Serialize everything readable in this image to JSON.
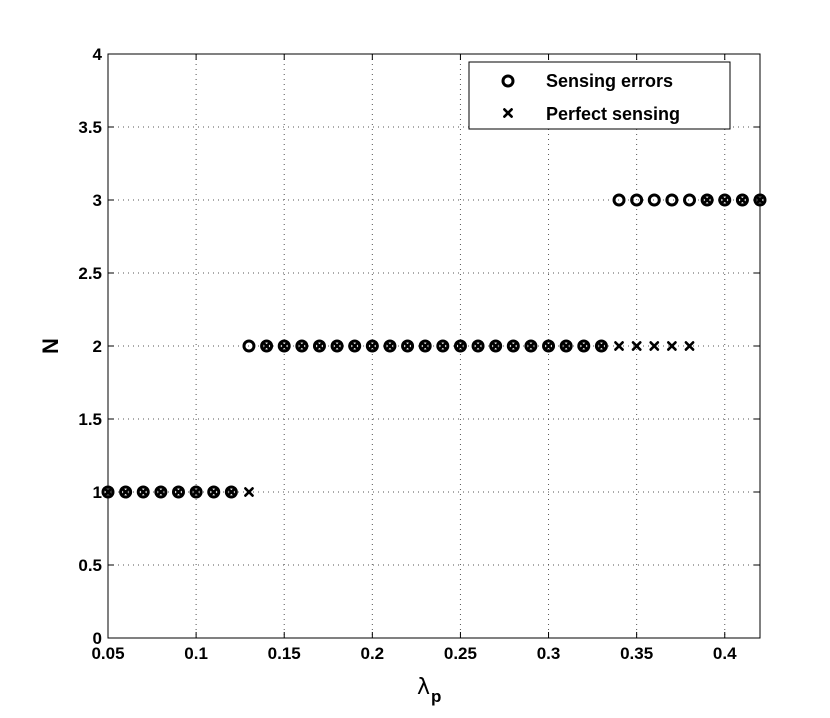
{
  "chart_data": {
    "type": "scatter",
    "title": "",
    "xlabel": "λ",
    "xlabel_sub": "p",
    "ylabel": "N",
    "xlim": [
      0.05,
      0.42
    ],
    "ylim": [
      0,
      4
    ],
    "grid": true,
    "legend_position": "top-right",
    "x_ticks": [
      "0.05",
      "0.1",
      "0.15",
      "0.2",
      "0.25",
      "0.3",
      "0.35",
      "0.4"
    ],
    "x_tick_values": [
      0.05,
      0.1,
      0.15,
      0.2,
      0.25,
      0.3,
      0.35,
      0.4
    ],
    "y_ticks": [
      "0",
      "0.5",
      "1",
      "1.5",
      "2",
      "2.5",
      "3",
      "3.5",
      "4"
    ],
    "y_tick_values": [
      0,
      0.5,
      1,
      1.5,
      2,
      2.5,
      3,
      3.5,
      4
    ],
    "series": [
      {
        "name": "Sensing errors",
        "marker": "circle",
        "x": [
          0.05,
          0.06,
          0.07,
          0.08,
          0.09,
          0.1,
          0.11,
          0.12,
          0.13,
          0.14,
          0.15,
          0.16,
          0.17,
          0.18,
          0.19,
          0.2,
          0.21,
          0.22,
          0.23,
          0.24,
          0.25,
          0.26,
          0.27,
          0.28,
          0.29,
          0.3,
          0.31,
          0.32,
          0.33,
          0.34,
          0.35,
          0.36,
          0.37,
          0.38,
          0.39,
          0.4,
          0.41,
          0.42
        ],
        "y": [
          1,
          1,
          1,
          1,
          1,
          1,
          1,
          1,
          2,
          2,
          2,
          2,
          2,
          2,
          2,
          2,
          2,
          2,
          2,
          2,
          2,
          2,
          2,
          2,
          2,
          2,
          2,
          2,
          2,
          3,
          3,
          3,
          3,
          3,
          3,
          3,
          3,
          3
        ]
      },
      {
        "name": "Perfect sensing",
        "marker": "x",
        "x": [
          0.05,
          0.06,
          0.07,
          0.08,
          0.09,
          0.1,
          0.11,
          0.12,
          0.13,
          0.14,
          0.15,
          0.16,
          0.17,
          0.18,
          0.19,
          0.2,
          0.21,
          0.22,
          0.23,
          0.24,
          0.25,
          0.26,
          0.27,
          0.28,
          0.29,
          0.3,
          0.31,
          0.32,
          0.33,
          0.34,
          0.35,
          0.36,
          0.37,
          0.38,
          0.39,
          0.4,
          0.41,
          0.42
        ],
        "y": [
          1,
          1,
          1,
          1,
          1,
          1,
          1,
          1,
          1,
          2,
          2,
          2,
          2,
          2,
          2,
          2,
          2,
          2,
          2,
          2,
          2,
          2,
          2,
          2,
          2,
          2,
          2,
          2,
          2,
          2,
          2,
          2,
          2,
          2,
          3,
          3,
          3,
          3
        ]
      }
    ]
  }
}
